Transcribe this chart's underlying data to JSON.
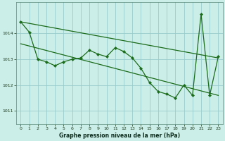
{
  "bg_color": "#cceee8",
  "grid_color": "#99cccc",
  "line_color": "#1a6b1a",
  "xlabel": "Graphe pression niveau de la mer (hPa)",
  "ylim": [
    1010.5,
    1015.2
  ],
  "xlim": [
    -0.5,
    23.5
  ],
  "yticks": [
    1011,
    1012,
    1013,
    1014
  ],
  "xticks": [
    0,
    1,
    2,
    3,
    4,
    5,
    6,
    7,
    8,
    9,
    10,
    11,
    12,
    13,
    14,
    15,
    16,
    17,
    18,
    19,
    20,
    21,
    22,
    23
  ],
  "trend1_x": [
    0,
    23
  ],
  "trend1_y": [
    1014.45,
    1013.05
  ],
  "trend2_x": [
    0,
    23
  ],
  "trend2_y": [
    1013.6,
    1011.6
  ],
  "data_x": [
    0,
    1,
    2,
    3,
    4,
    5,
    6,
    7,
    8,
    9,
    10,
    11,
    12,
    13,
    14,
    15,
    16,
    17,
    18,
    19,
    20,
    21,
    22,
    23
  ],
  "data_y": [
    1014.45,
    1014.05,
    1013.0,
    1012.9,
    1012.75,
    1012.9,
    1013.0,
    1013.05,
    1013.35,
    1013.2,
    1013.1,
    1013.45,
    1013.3,
    1013.05,
    1012.65,
    1012.1,
    1011.75,
    1011.65,
    1011.5,
    1012.0,
    1011.6,
    1014.75,
    1011.6,
    1013.1
  ]
}
